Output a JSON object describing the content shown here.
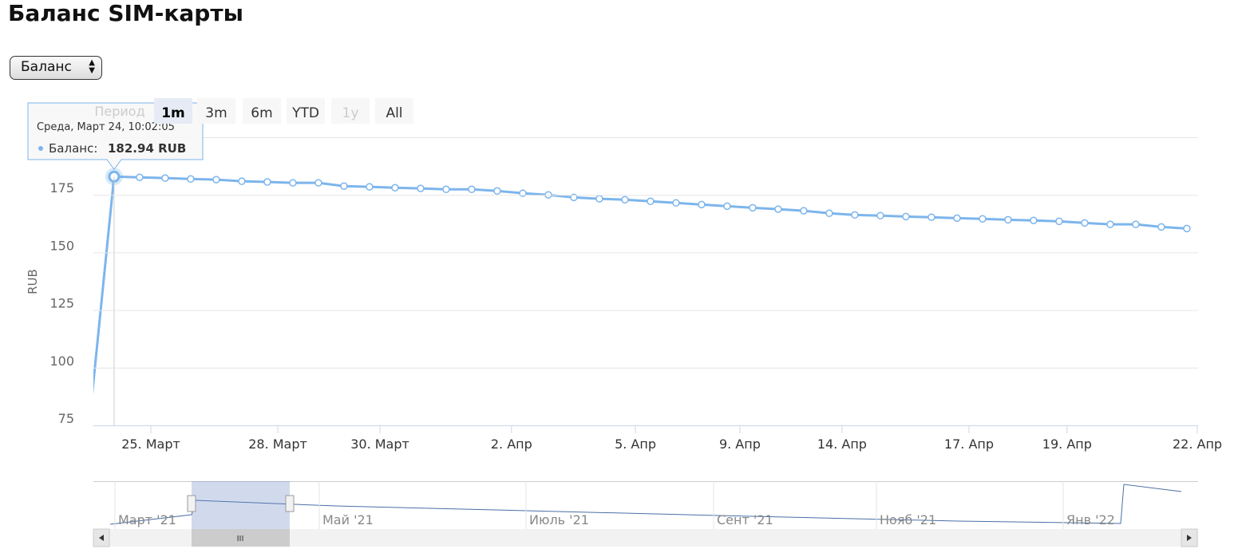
{
  "chart_data": {
    "type": "line",
    "title": "Баланс SIM-карты",
    "selector": "Баланс",
    "range_label": "Период",
    "range_buttons": [
      "1m",
      "3m",
      "6m",
      "YTD",
      "1y",
      "All"
    ],
    "range_selected": "1m",
    "range_disabled": [
      "1y"
    ],
    "y_label": "RUB",
    "ylim": [
      75,
      200
    ],
    "yticks": [
      75,
      100,
      125,
      150,
      175
    ],
    "grid": true,
    "xlim": [
      0.19,
      43.44
    ],
    "xticks": [
      {
        "value": 2.44,
        "label": "25. Март"
      },
      {
        "value": 7.41,
        "label": "28. Март"
      },
      {
        "value": 11.41,
        "label": "30. Март"
      },
      {
        "value": 16.56,
        "label": "2. Апр"
      },
      {
        "value": 21.41,
        "label": "5. Апр"
      },
      {
        "value": 25.5,
        "label": "9. Апр"
      },
      {
        "value": 29.5,
        "label": "14. Апр"
      },
      {
        "value": 34.47,
        "label": "17. Апр"
      },
      {
        "value": 38.31,
        "label": "19. Апр"
      },
      {
        "value": 43.41,
        "label": "22. Апр"
      }
    ],
    "series": [
      {
        "name": "Баланс",
        "color": "#7cb5ec",
        "values": [
          72.6,
          182.94,
          182.6,
          182.3,
          181.9,
          181.6,
          180.9,
          180.6,
          180.2,
          180.2,
          178.8,
          178.5,
          178.1,
          177.8,
          177.4,
          177.4,
          176.7,
          175.7,
          175.0,
          173.9,
          173.3,
          172.9,
          172.2,
          171.5,
          170.8,
          170.1,
          169.4,
          168.8,
          168.1,
          167.0,
          166.3,
          166.0,
          165.6,
          165.3,
          164.9,
          164.6,
          164.2,
          163.9,
          163.5,
          162.8,
          162.2,
          162.2,
          161.1,
          160.4
        ]
      }
    ],
    "tooltip": {
      "header": "Среда, Март 24, 10:02:05",
      "label": "Баланс:",
      "value_label": "182.94 RUB",
      "index": 1
    },
    "navigator_labels": [
      "Март '21",
      "Май '21",
      "Июль '21",
      "Сент '21",
      "Нояб '21",
      "Янв '22"
    ]
  }
}
